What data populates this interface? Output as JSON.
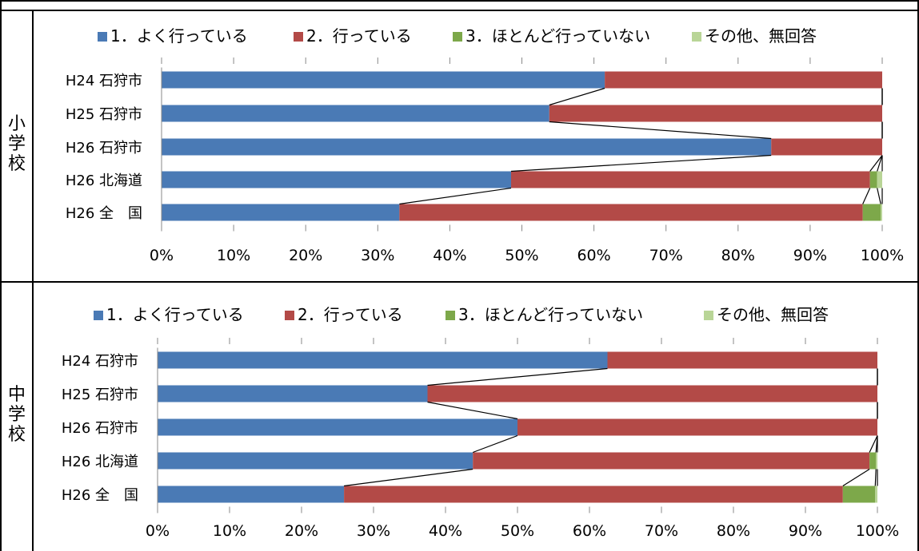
{
  "sections": [
    {
      "label": "小学校"
    },
    {
      "label": "中学校"
    }
  ],
  "chart_data": [
    {
      "type": "bar",
      "orientation": "horizontal",
      "stacked": "percent",
      "legend_position": "top",
      "categories": [
        "H24 石狩市",
        "H25 石狩市",
        "H26 石狩市",
        "H26 北海道",
        "H26 全　国"
      ],
      "series": [
        {
          "name": "1．よく行っている",
          "color": "#4a7ab5",
          "values": [
            61.5,
            53.8,
            84.6,
            48.5,
            33.0
          ]
        },
        {
          "name": "2．行っている",
          "color": "#b34a47",
          "values": [
            38.5,
            46.2,
            15.4,
            49.8,
            64.3
          ]
        },
        {
          "name": "3．ほとんど行っていない",
          "color": "#7da84a",
          "values": [
            0.0,
            0.0,
            0.0,
            1.0,
            2.5
          ]
        },
        {
          "name": "その他、無回答",
          "color": "#b9d597",
          "values": [
            0.0,
            0.0,
            0.0,
            0.7,
            0.2
          ]
        }
      ],
      "xlim": [
        0,
        100
      ],
      "x_ticks": [
        "0%",
        "10%",
        "20%",
        "30%",
        "40%",
        "50%",
        "60%",
        "70%",
        "80%",
        "90%",
        "100%"
      ],
      "series_lines": true,
      "grid": false
    },
    {
      "type": "bar",
      "orientation": "horizontal",
      "stacked": "percent",
      "legend_position": "top",
      "categories": [
        "H24 石狩市",
        "H25 石狩市",
        "H26 石狩市",
        "H26 北海道",
        "H26 全　国"
      ],
      "series": [
        {
          "name": "1．よく行っている",
          "color": "#4a7ab5",
          "values": [
            62.5,
            37.5,
            50.0,
            43.8,
            25.9
          ]
        },
        {
          "name": "2．行っている",
          "color": "#b34a47",
          "values": [
            37.5,
            62.5,
            50.0,
            55.1,
            69.3
          ]
        },
        {
          "name": "3．ほとんど行っていない",
          "color": "#7da84a",
          "values": [
            0.0,
            0.0,
            0.0,
            0.9,
            4.5
          ]
        },
        {
          "name": "その他、無回答",
          "color": "#b9d597",
          "values": [
            0.0,
            0.0,
            0.0,
            0.2,
            0.3
          ]
        }
      ],
      "xlim": [
        0,
        100
      ],
      "x_ticks": [
        "0%",
        "10%",
        "20%",
        "30%",
        "40%",
        "50%",
        "60%",
        "70%",
        "80%",
        "90%",
        "100%"
      ],
      "series_lines": true,
      "grid": false
    }
  ]
}
